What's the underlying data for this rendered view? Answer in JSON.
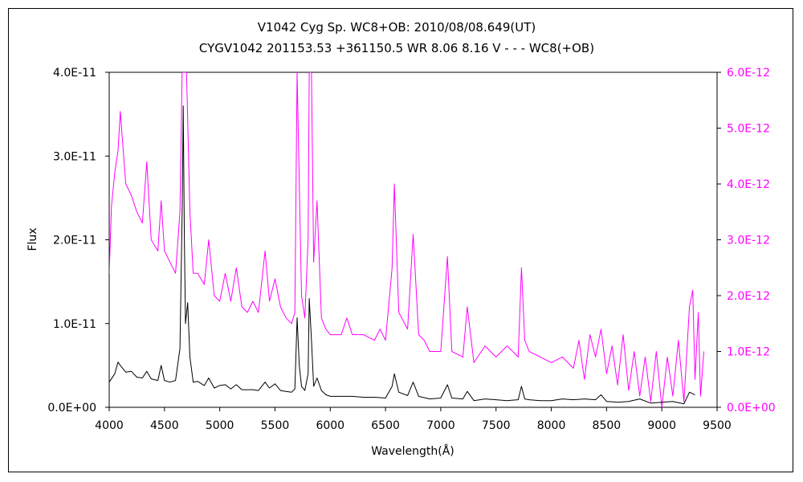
{
  "chart_data": {
    "type": "line",
    "title": "V1042 Cyg    Sp. WC8+OB:    2010/08/08.649(UT)",
    "subtitle": "CYGV1042 201153.53 +361150.5 WR 8.06 8.16 V - - - WC8(+OB)",
    "xlabel": "Wavelength(Å)",
    "ylabel": "Flux",
    "xlim": [
      4000,
      9500
    ],
    "ylim_left": [
      0,
      4e-11
    ],
    "ylim_right": [
      0,
      6e-12
    ],
    "x_ticks": [
      "4000",
      "4500",
      "5000",
      "5500",
      "6000",
      "6500",
      "7000",
      "7500",
      "8000",
      "8500",
      "9000",
      "9500"
    ],
    "y_ticks_left": [
      "0.0E+00",
      "1.0E-11",
      "2.0E-11",
      "3.0E-11",
      "4.0E-11"
    ],
    "y_ticks_right": [
      "0.0E+00",
      "1.0E-12",
      "2.0E-12",
      "3.0E-12",
      "4.0E-12",
      "5.0E-12",
      "6.0E-12"
    ],
    "grid": false,
    "legend": "none",
    "colors": {
      "left_series": "#000000",
      "right_series": "#ff00ff",
      "right_axis": "#ff00ff"
    },
    "series": [
      {
        "axis": "left",
        "x": [
          4000,
          4050,
          4080,
          4100,
          4150,
          4200,
          4250,
          4300,
          4340,
          4380,
          4440,
          4470,
          4500,
          4550,
          4600,
          4640,
          4660,
          4670,
          4680,
          4690,
          4710,
          4730,
          4760,
          4800,
          4860,
          4900,
          4950,
          5000,
          5050,
          5100,
          5150,
          5200,
          5250,
          5300,
          5350,
          5410,
          5450,
          5500,
          5550,
          5600,
          5650,
          5680,
          5700,
          5720,
          5740,
          5770,
          5800,
          5810,
          5830,
          5850,
          5880,
          5920,
          5960,
          6000,
          6100,
          6200,
          6300,
          6400,
          6500,
          6560,
          6580,
          6620,
          6700,
          6750,
          6800,
          6900,
          7000,
          7060,
          7100,
          7200,
          7240,
          7300,
          7400,
          7500,
          7600,
          7700,
          7730,
          7760,
          7800,
          7900,
          8000,
          8100,
          8200,
          8300,
          8400,
          8450,
          8500,
          8600,
          8700,
          8800,
          8900,
          9000,
          9100,
          9200,
          9250,
          9300
        ],
        "y": [
          3e-12,
          4e-12,
          5.4e-12,
          5e-12,
          4.2e-12,
          4.3e-12,
          3.6e-12,
          3.5e-12,
          4.3e-12,
          3.4e-12,
          3.2e-12,
          5e-12,
          3.2e-12,
          3e-12,
          3.2e-12,
          7e-12,
          2.3e-11,
          3.6e-11,
          2e-11,
          1e-11,
          1.25e-11,
          6e-12,
          3e-12,
          3.1e-12,
          2.6e-12,
          3.5e-12,
          2.3e-12,
          2.6e-12,
          2.7e-12,
          2.2e-12,
          2.7e-12,
          2.1e-12,
          2.1e-12,
          2.1e-12,
          2e-12,
          3e-12,
          2.3e-12,
          2.8e-12,
          2e-12,
          1.9e-12,
          1.8e-12,
          2.2e-12,
          1.07e-11,
          5e-12,
          2.5e-12,
          2e-12,
          4e-12,
          1.3e-11,
          8e-12,
          2.5e-12,
          3.5e-12,
          2e-12,
          1.5e-12,
          1.3e-12,
          1.3e-12,
          1.3e-12,
          1.2e-12,
          1.2e-12,
          1.1e-12,
          2.5e-12,
          4e-12,
          1.8e-12,
          1.4e-12,
          3e-12,
          1.3e-12,
          1e-12,
          1.1e-12,
          2.7e-12,
          1.1e-12,
          1e-12,
          1.9e-12,
          8e-13,
          1e-12,
          9e-13,
          8e-13,
          9e-13,
          2.5e-12,
          1e-12,
          9e-13,
          8e-13,
          8e-13,
          1e-12,
          9e-13,
          1e-12,
          9e-13,
          1.5e-12,
          7e-13,
          6e-13,
          7e-13,
          1e-12,
          5e-13,
          6e-13,
          7e-13,
          4e-13,
          1.8e-12,
          1.5e-12
        ]
      },
      {
        "axis": "right",
        "x": [
          4000,
          4020,
          4050,
          4080,
          4100,
          4150,
          4200,
          4250,
          4300,
          4340,
          4380,
          4440,
          4470,
          4500,
          4550,
          4600,
          4640,
          4660,
          4680,
          4700,
          4730,
          4760,
          4800,
          4860,
          4900,
          4950,
          5000,
          5050,
          5100,
          5150,
          5200,
          5250,
          5300,
          5350,
          5410,
          5450,
          5500,
          5550,
          5600,
          5650,
          5680,
          5700,
          5720,
          5740,
          5770,
          5800,
          5810,
          5830,
          5850,
          5880,
          5920,
          5960,
          6000,
          6100,
          6150,
          6200,
          6300,
          6400,
          6450,
          6500,
          6560,
          6580,
          6620,
          6700,
          6750,
          6800,
          6850,
          6900,
          7000,
          7060,
          7100,
          7200,
          7240,
          7300,
          7400,
          7500,
          7600,
          7700,
          7730,
          7760,
          7800,
          7900,
          8000,
          8100,
          8200,
          8250,
          8300,
          8350,
          8400,
          8450,
          8500,
          8550,
          8600,
          8650,
          8700,
          8750,
          8800,
          8850,
          8900,
          8950,
          9000,
          9050,
          9100,
          9150,
          9200,
          9250,
          9280,
          9300,
          9330,
          9350,
          9380
        ],
        "y": [
          2.4e-12,
          3.6e-12,
          4.2e-12,
          4.6e-12,
          5.3e-12,
          4e-12,
          3.8e-12,
          3.5e-12,
          3.3e-12,
          4.4e-12,
          3e-12,
          2.8e-12,
          3.7e-12,
          2.8e-12,
          2.6e-12,
          2.4e-12,
          3.5e-12,
          6e-12,
          6e-12,
          6e-12,
          3.5e-12,
          2.4e-12,
          2.4e-12,
          2.2e-12,
          3e-12,
          2e-12,
          1.9e-12,
          2.4e-12,
          1.9e-12,
          2.5e-12,
          1.8e-12,
          1.7e-12,
          1.9e-12,
          1.7e-12,
          2.8e-12,
          1.9e-12,
          2.3e-12,
          1.8e-12,
          1.6e-12,
          1.5e-12,
          1.7e-12,
          6e-12,
          4e-12,
          2e-12,
          1.6e-12,
          3e-12,
          6e-12,
          6e-12,
          2.6e-12,
          3.7e-12,
          1.6e-12,
          1.4e-12,
          1.3e-12,
          1.3e-12,
          1.6e-12,
          1.3e-12,
          1.3e-12,
          1.2e-12,
          1.4e-12,
          1.2e-12,
          2.5e-12,
          4e-12,
          1.7e-12,
          1.4e-12,
          3.1e-12,
          1.3e-12,
          1.2e-12,
          1e-12,
          1e-12,
          2.7e-12,
          1e-12,
          9e-13,
          1.8e-12,
          8e-13,
          1.1e-12,
          9e-13,
          1.1e-12,
          9e-13,
          2.5e-12,
          1.2e-12,
          1e-12,
          9e-13,
          8e-13,
          9e-13,
          7e-13,
          1.2e-12,
          5e-13,
          1.3e-12,
          9e-13,
          1.4e-12,
          6e-13,
          1.1e-12,
          4e-13,
          1.3e-12,
          3e-13,
          1e-12,
          2e-13,
          9e-13,
          1e-13,
          1e-12,
          0.0,
          9e-13,
          2e-13,
          1.2e-12,
          1e-13,
          1.8e-12,
          2.1e-12,
          5e-13,
          1.7e-12,
          2e-13,
          1e-12
        ]
      }
    ]
  }
}
